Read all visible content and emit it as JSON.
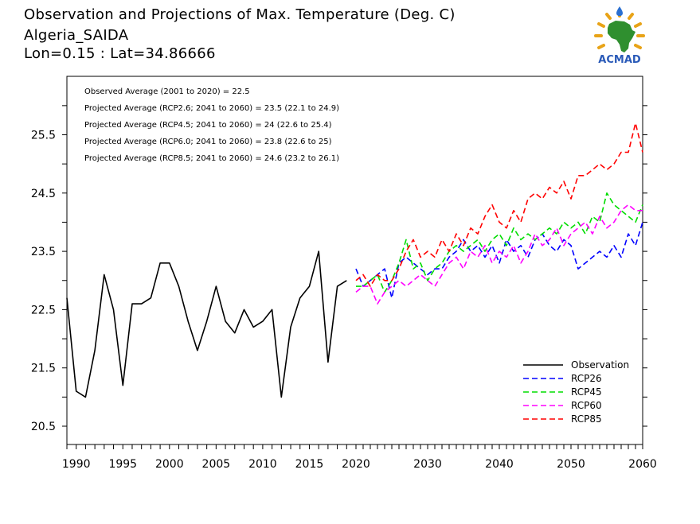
{
  "title": {
    "line1": "Observation and Projections of Max. Temperature (Deg. C)",
    "line2": "Algeria_SAIDA",
    "line3": "Lon=0.15 : Lat=34.86666"
  },
  "logo": {
    "text": "ACMAD",
    "colors": {
      "africa": "#2f8f2f",
      "rays": "#e8a317",
      "drop": "#2a6fd1",
      "text": "#2a5ab8"
    }
  },
  "annotations": [
    "Observed Average (2001 to 2020) = 22.5",
    "Projected Average (RCP2.6; 2041 to 2060) = 23.5 (22.1 to 24.9)",
    "Projected Average (RCP4.5; 2041 to 2060) = 24 (22.6 to 25.4)",
    "Projected Average (RCP6.0; 2041 to 2060) = 23.8 (22.6 to 25)",
    "Projected Average (RCP8.5; 2041 to 2060) = 24.6 (23.2 to 26.1)"
  ],
  "chart_data": {
    "type": "line",
    "xlim": [
      1989,
      2060
    ],
    "ylim": [
      20.2,
      26.2
    ],
    "xticks": [
      "1990",
      "1995",
      "2000",
      "2005",
      "2010",
      "2015",
      "2020",
      "2030",
      "2040",
      "2050",
      "2060"
    ],
    "xtick_values": [
      1990,
      1995,
      2000,
      2005,
      2010,
      2015,
      2020,
      2030,
      2040,
      2050,
      2060
    ],
    "yticks": [
      "20.5",
      "21.5",
      "22.5",
      "23.5",
      "24.5",
      "25.5"
    ],
    "ytick_values": [
      20.5,
      21.5,
      22.5,
      23.5,
      24.5,
      25.5
    ],
    "legend_position": "bottom-right",
    "series": [
      {
        "name": "Observation",
        "color": "#000000",
        "dashed": false,
        "x": [
          1989,
          1990,
          1991,
          1992,
          1993,
          1994,
          1995,
          1996,
          1997,
          1998,
          1999,
          2000,
          2001,
          2002,
          2003,
          2004,
          2005,
          2006,
          2007,
          2008,
          2009,
          2010,
          2011,
          2012,
          2013,
          2014,
          2015,
          2016,
          2017,
          2018,
          2019
        ],
        "y": [
          22.7,
          21.1,
          21.0,
          21.8,
          23.1,
          22.5,
          21.2,
          22.6,
          22.6,
          22.7,
          23.3,
          23.3,
          22.9,
          22.3,
          21.8,
          22.3,
          22.9,
          22.3,
          22.1,
          22.5,
          22.2,
          22.3,
          22.5,
          21.0,
          22.2,
          22.7,
          22.9,
          23.5,
          21.6,
          22.9,
          23.0
        ]
      },
      {
        "name": "RCP26",
        "color": "#0000ff",
        "dashed": true,
        "x": [
          2020,
          2021,
          2022,
          2023,
          2024,
          2025,
          2026,
          2027,
          2028,
          2029,
          2030,
          2031,
          2032,
          2033,
          2034,
          2035,
          2036,
          2037,
          2038,
          2039,
          2040,
          2041,
          2042,
          2043,
          2044,
          2045,
          2046,
          2047,
          2048,
          2049,
          2050,
          2051,
          2052,
          2053,
          2054,
          2055,
          2056,
          2057,
          2058,
          2059,
          2060
        ],
        "y": [
          23.2,
          22.9,
          23.0,
          23.1,
          23.2,
          22.7,
          23.3,
          23.4,
          23.3,
          23.2,
          23.1,
          23.2,
          23.2,
          23.4,
          23.5,
          23.7,
          23.5,
          23.6,
          23.4,
          23.6,
          23.3,
          23.7,
          23.5,
          23.6,
          23.4,
          23.7,
          23.8,
          23.6,
          23.5,
          23.7,
          23.6,
          23.2,
          23.3,
          23.4,
          23.5,
          23.4,
          23.6,
          23.4,
          23.8,
          23.6,
          24.0
        ]
      },
      {
        "name": "RCP45",
        "color": "#00dd00",
        "dashed": true,
        "x": [
          2020,
          2021,
          2022,
          2023,
          2024,
          2025,
          2026,
          2027,
          2028,
          2029,
          2030,
          2031,
          2032,
          2033,
          2034,
          2035,
          2036,
          2037,
          2038,
          2039,
          2040,
          2041,
          2042,
          2043,
          2044,
          2045,
          2046,
          2047,
          2048,
          2049,
          2050,
          2051,
          2052,
          2053,
          2054,
          2055,
          2056,
          2057,
          2058,
          2059,
          2060
        ],
        "y": [
          22.9,
          22.9,
          23.0,
          23.1,
          22.8,
          23.0,
          23.3,
          23.7,
          23.2,
          23.3,
          23.0,
          23.2,
          23.3,
          23.5,
          23.6,
          23.5,
          23.6,
          23.7,
          23.5,
          23.7,
          23.8,
          23.6,
          23.9,
          23.7,
          23.8,
          23.7,
          23.8,
          23.9,
          23.8,
          24.0,
          23.9,
          24.0,
          23.8,
          24.1,
          24.0,
          24.5,
          24.3,
          24.2,
          24.1,
          24.0,
          24.3
        ]
      },
      {
        "name": "RCP60",
        "color": "#ff00ff",
        "dashed": true,
        "x": [
          2020,
          2021,
          2022,
          2023,
          2024,
          2025,
          2026,
          2027,
          2028,
          2029,
          2030,
          2031,
          2032,
          2033,
          2034,
          2035,
          2036,
          2037,
          2038,
          2039,
          2040,
          2041,
          2042,
          2043,
          2044,
          2045,
          2046,
          2047,
          2048,
          2049,
          2050,
          2051,
          2052,
          2053,
          2054,
          2055,
          2056,
          2057,
          2058,
          2059,
          2060
        ],
        "y": [
          22.8,
          22.9,
          22.9,
          22.6,
          22.8,
          22.9,
          23.0,
          22.9,
          23.0,
          23.1,
          23.0,
          22.9,
          23.1,
          23.3,
          23.4,
          23.2,
          23.5,
          23.4,
          23.6,
          23.3,
          23.5,
          23.4,
          23.6,
          23.3,
          23.5,
          23.8,
          23.6,
          23.7,
          23.9,
          23.6,
          23.8,
          23.9,
          24.0,
          23.8,
          24.1,
          23.9,
          24.0,
          24.2,
          24.3,
          24.2,
          24.2
        ]
      },
      {
        "name": "RCP85",
        "color": "#ff0000",
        "dashed": true,
        "x": [
          2020,
          2021,
          2022,
          2023,
          2024,
          2025,
          2026,
          2027,
          2028,
          2029,
          2030,
          2031,
          2032,
          2033,
          2034,
          2035,
          2036,
          2037,
          2038,
          2039,
          2040,
          2041,
          2042,
          2043,
          2044,
          2045,
          2046,
          2047,
          2048,
          2049,
          2050,
          2051,
          2052,
          2053,
          2054,
          2055,
          2056,
          2057,
          2058,
          2059,
          2060
        ],
        "y": [
          23.0,
          23.1,
          22.9,
          23.1,
          23.0,
          23.0,
          23.2,
          23.5,
          23.7,
          23.4,
          23.5,
          23.4,
          23.7,
          23.5,
          23.8,
          23.6,
          23.9,
          23.8,
          24.1,
          24.3,
          24.0,
          23.9,
          24.2,
          24.0,
          24.4,
          24.5,
          24.4,
          24.6,
          24.5,
          24.7,
          24.4,
          24.8,
          24.8,
          24.9,
          25.0,
          24.9,
          25.0,
          25.2,
          25.2,
          25.7,
          25.2
        ]
      }
    ]
  }
}
